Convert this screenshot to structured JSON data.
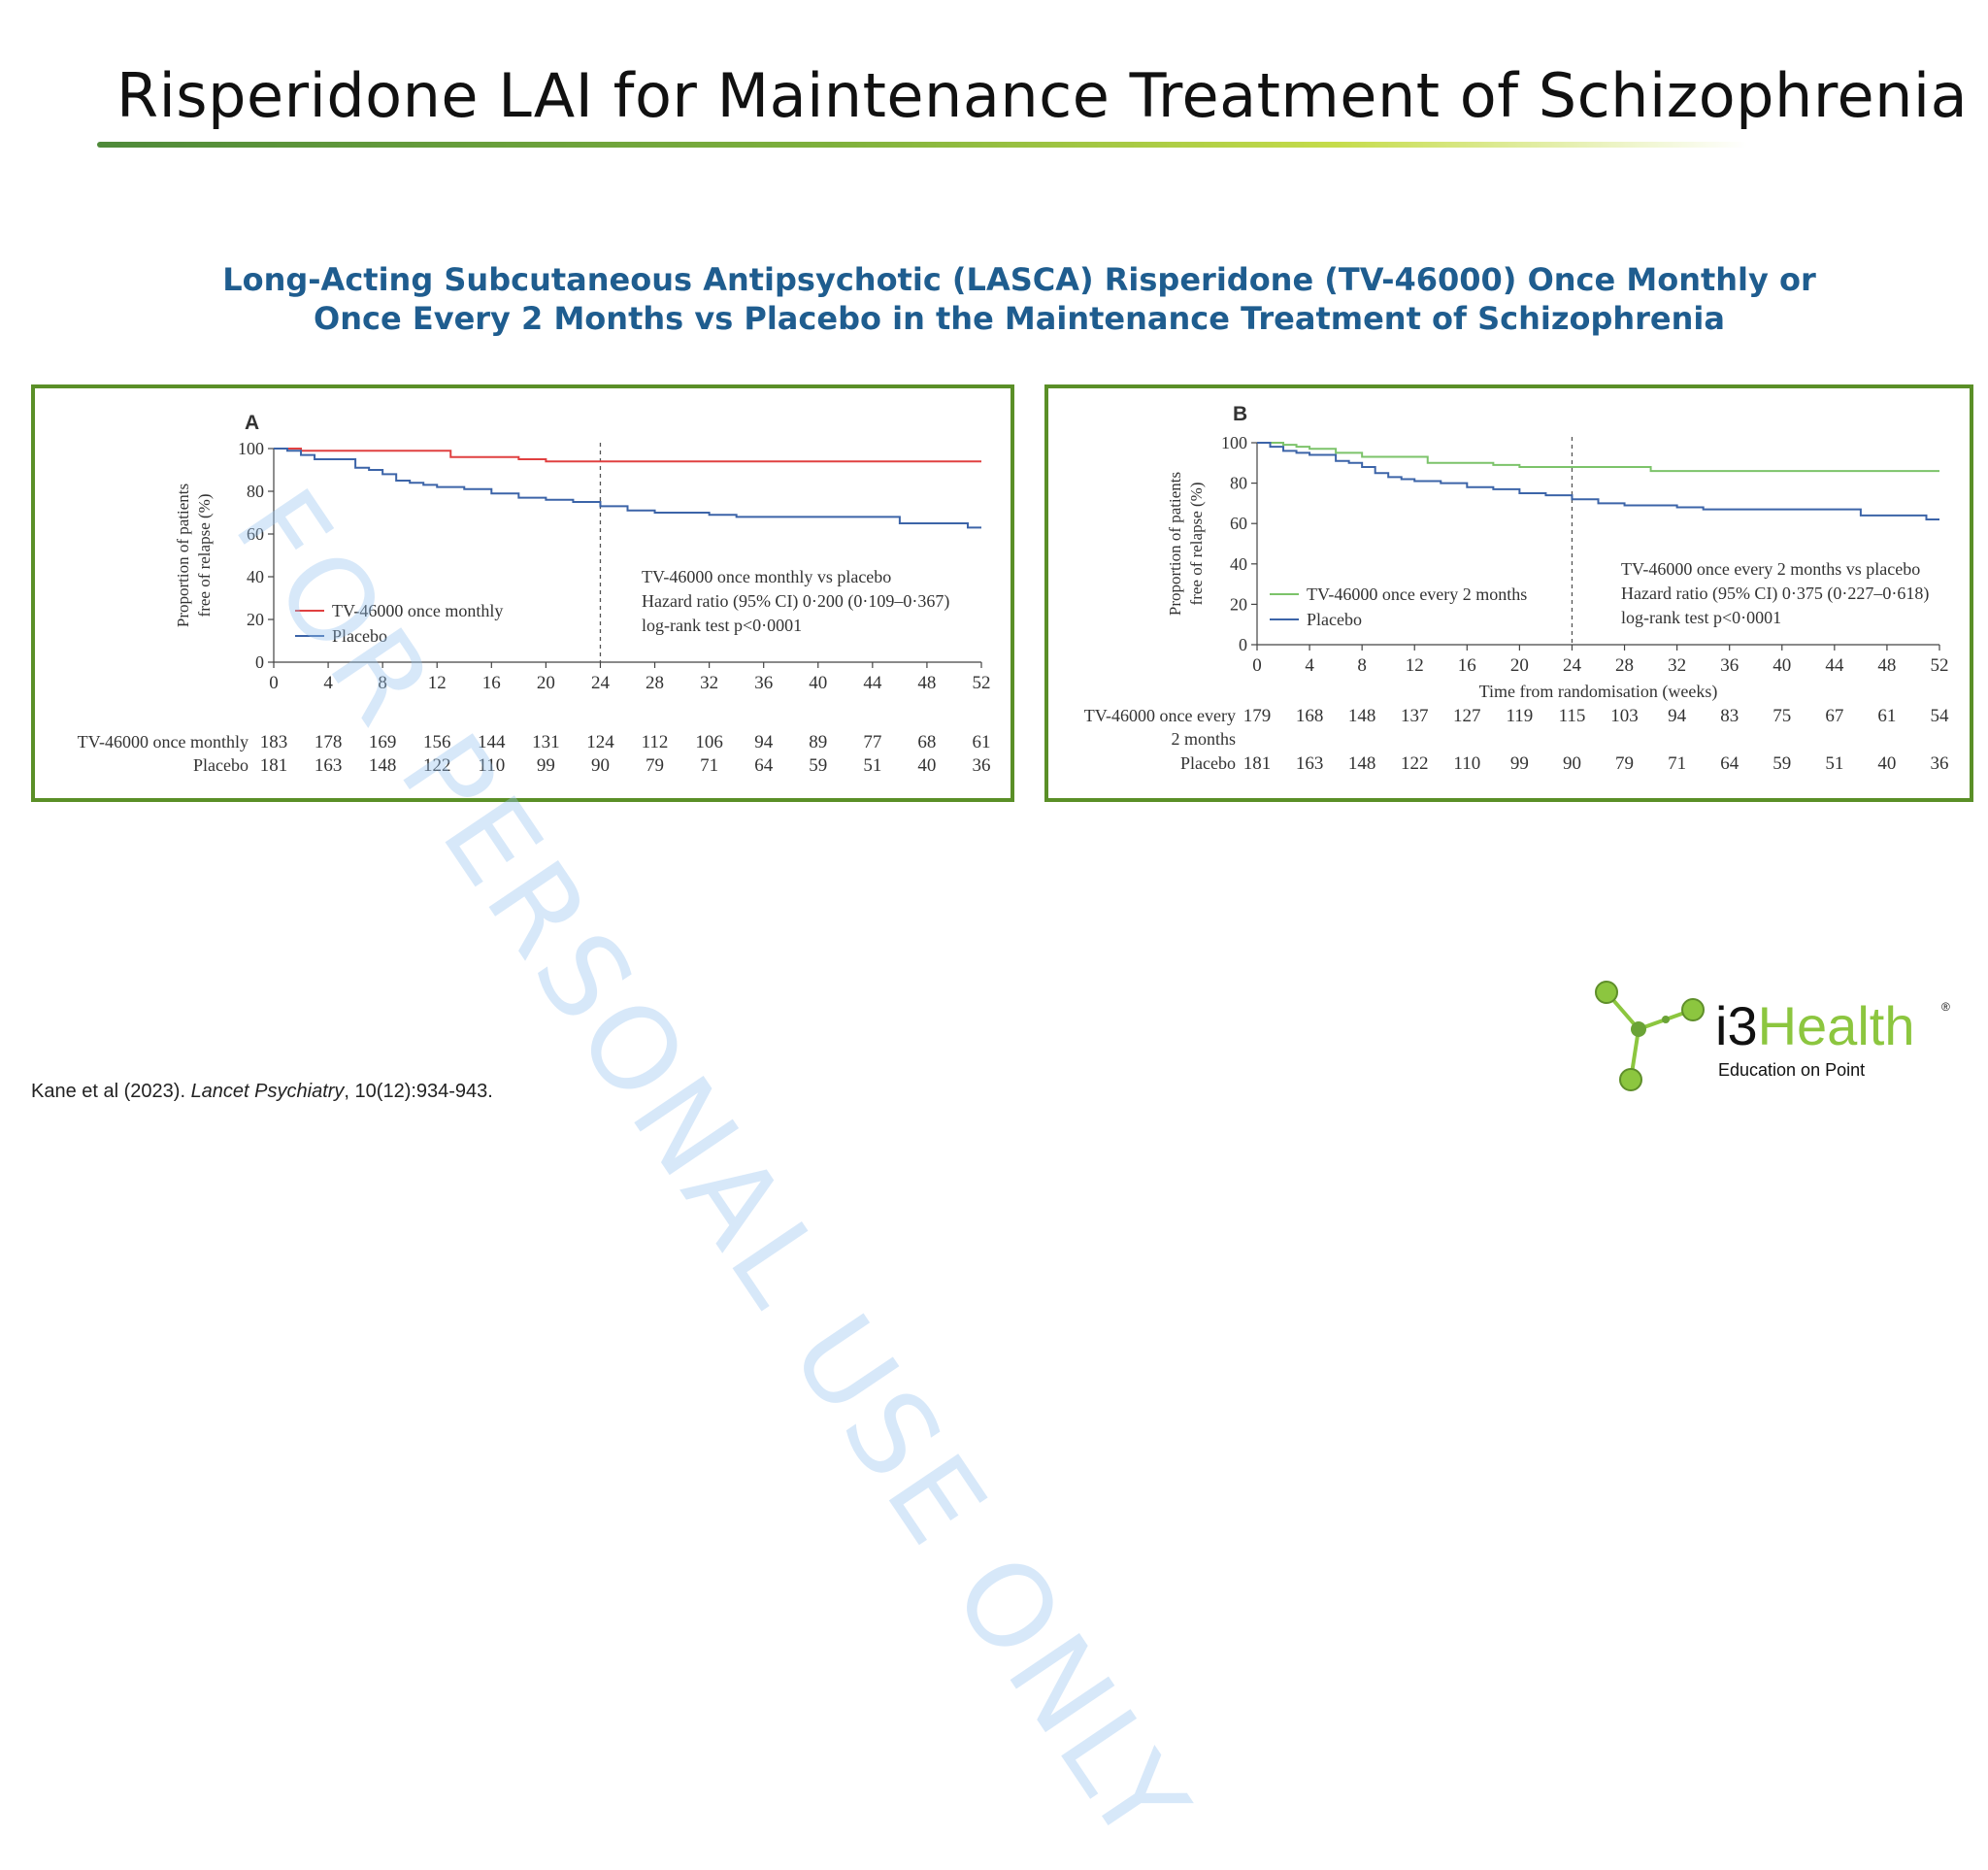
{
  "slide": {
    "title": "Risperidone LAI for Maintenance Treatment of Schizophrenia",
    "subtitle_line1": "Long-Acting Subcutaneous Antipsychotic (LASCA) Risperidone (TV-46000) Once Monthly or",
    "subtitle_line2": "Once Every 2 Months vs Placebo in the Maintenance Treatment of Schizophrenia",
    "watermark": "FOR PERSONAL USE ONLY",
    "citation_authors": "Kane et al (2023). ",
    "citation_journal": "Lancet Psychiatry",
    "citation_rest": ", 10(12):934-943."
  },
  "logo": {
    "name_part1": "i3",
    "name_part2": "Health",
    "registered": "®",
    "tagline": "Education on Point",
    "brand_color": "#8cc63f"
  },
  "colors": {
    "treatment": "#e04040",
    "treatment_b": "#7cc36a",
    "placebo": "#3c64a8",
    "panel_border": "#5a8f27",
    "subtitle": "#1f5d8f"
  },
  "chart_data": [
    {
      "type": "line",
      "panel_label": "A",
      "xlabel": "",
      "ylabel_line1": "Proportion of patients",
      "ylabel_line2": "free of relapse (%)",
      "xlim": [
        0,
        52
      ],
      "ylim": [
        0,
        100
      ],
      "x_ticks": [
        0,
        4,
        8,
        12,
        16,
        20,
        24,
        28,
        32,
        36,
        40,
        44,
        48,
        52
      ],
      "y_ticks": [
        0,
        20,
        40,
        60,
        80,
        100
      ],
      "reference_line_x": 24,
      "legend_position": "bottom-left",
      "series": [
        {
          "name": "TV-46000 once monthly",
          "color": "#e04040",
          "x": [
            0,
            2,
            4,
            8,
            12,
            13,
            16,
            18,
            20,
            24,
            28,
            36,
            44,
            52
          ],
          "y": [
            100,
            99,
            99,
            99,
            99,
            96,
            96,
            95,
            94,
            94,
            94,
            94,
            94,
            94
          ]
        },
        {
          "name": "Placebo",
          "color": "#3c64a8",
          "x": [
            0,
            1,
            2,
            3,
            4,
            5,
            6,
            7,
            8,
            9,
            10,
            11,
            12,
            14,
            16,
            18,
            20,
            22,
            24,
            26,
            28,
            30,
            32,
            34,
            36,
            40,
            44,
            46,
            48,
            50,
            51,
            52
          ],
          "y": [
            100,
            99,
            97,
            95,
            95,
            95,
            91,
            90,
            88,
            85,
            84,
            83,
            82,
            81,
            79,
            77,
            76,
            75,
            73,
            71,
            70,
            70,
            69,
            68,
            68,
            68,
            68,
            65,
            65,
            65,
            63,
            63
          ]
        }
      ],
      "annotation": [
        "TV-46000 once monthly vs placebo",
        "Hazard ratio (95% CI) 0·200 (0·109–0·367)",
        "log-rank test p<0·0001"
      ],
      "risk_table": [
        {
          "label": "TV-46000 once monthly",
          "values": [
            183,
            178,
            169,
            156,
            144,
            131,
            124,
            112,
            106,
            94,
            89,
            77,
            68,
            61
          ]
        },
        {
          "label": "Placebo",
          "values": [
            181,
            163,
            148,
            122,
            110,
            99,
            90,
            79,
            71,
            64,
            59,
            51,
            40,
            36
          ]
        }
      ]
    },
    {
      "type": "line",
      "panel_label": "B",
      "xlabel": "Time from randomisation (weeks)",
      "ylabel_line1": "Proportion of patients",
      "ylabel_line2": "free of relapse (%)",
      "xlim": [
        0,
        52
      ],
      "ylim": [
        0,
        100
      ],
      "x_ticks": [
        0,
        4,
        8,
        12,
        16,
        20,
        24,
        28,
        32,
        36,
        40,
        44,
        48,
        52
      ],
      "y_ticks": [
        0,
        20,
        40,
        60,
        80,
        100
      ],
      "reference_line_x": 24,
      "legend_position": "bottom-left",
      "series": [
        {
          "name": "TV-46000 once every 2 months",
          "color": "#7cc36a",
          "x": [
            0,
            2,
            3,
            4,
            6,
            8,
            10,
            13,
            16,
            18,
            20,
            24,
            28,
            30,
            32,
            40,
            48,
            52
          ],
          "y": [
            100,
            99,
            98,
            97,
            95,
            93,
            93,
            90,
            90,
            89,
            88,
            88,
            88,
            86,
            86,
            86,
            86,
            86
          ]
        },
        {
          "name": "Placebo",
          "color": "#3c64a8",
          "x": [
            0,
            1,
            2,
            3,
            4,
            5,
            6,
            7,
            8,
            9,
            10,
            11,
            12,
            14,
            16,
            18,
            20,
            22,
            24,
            26,
            28,
            30,
            32,
            34,
            36,
            40,
            44,
            46,
            48,
            50,
            51,
            52
          ],
          "y": [
            100,
            98,
            96,
            95,
            94,
            94,
            91,
            90,
            88,
            85,
            83,
            82,
            81,
            80,
            78,
            77,
            75,
            74,
            72,
            70,
            69,
            69,
            68,
            67,
            67,
            67,
            67,
            64,
            64,
            64,
            62,
            62
          ]
        }
      ],
      "annotation": [
        "TV-46000 once every 2 months vs placebo",
        "Hazard ratio (95% CI) 0·375 (0·227–0·618)",
        "log-rank test p<0·0001"
      ],
      "risk_table": [
        {
          "label": "TV-46000 once every",
          "label2": "2 months",
          "values": [
            179,
            168,
            148,
            137,
            127,
            119,
            115,
            103,
            94,
            83,
            75,
            67,
            61,
            54
          ]
        },
        {
          "label": "Placebo",
          "values": [
            181,
            163,
            148,
            122,
            110,
            99,
            90,
            79,
            71,
            64,
            59,
            51,
            40,
            36
          ]
        }
      ]
    }
  ]
}
